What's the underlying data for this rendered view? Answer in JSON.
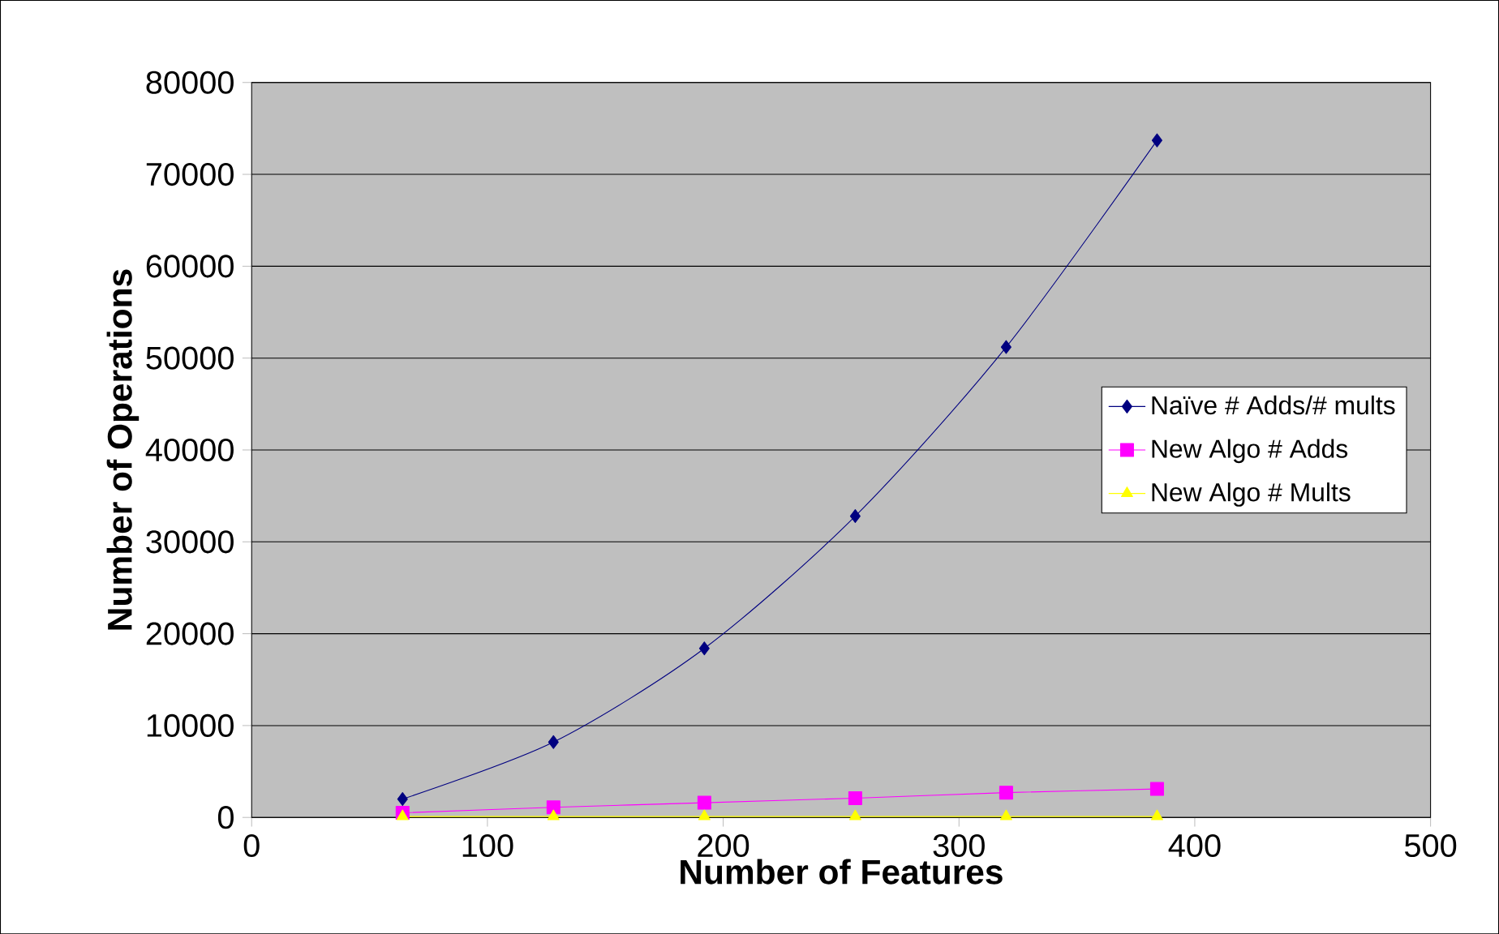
{
  "chart_data": {
    "type": "line",
    "xlabel": "Number of Features",
    "ylabel": "Number of Operations",
    "x": [
      64,
      128,
      192,
      256,
      320,
      384
    ],
    "series": [
      {
        "name": "Naïve # Adds/# mults",
        "color": "#000080",
        "marker": "diamond",
        "values": [
          2000,
          8200,
          18400,
          32800,
          51200,
          73700
        ]
      },
      {
        "name": "New Algo # Adds",
        "color": "#ff00ff",
        "marker": "square",
        "values": [
          500,
          1100,
          1600,
          2100,
          2700,
          3100
        ]
      },
      {
        "name": "New Algo # Mults",
        "color": "#ffff00",
        "marker": "triangle",
        "values": [
          100,
          100,
          100,
          100,
          100,
          100
        ]
      }
    ],
    "xlim": [
      0,
      500
    ],
    "xticks": [
      0,
      100,
      200,
      300,
      400,
      500
    ],
    "ylim": [
      0,
      80000
    ],
    "yticks": [
      0,
      10000,
      20000,
      30000,
      40000,
      50000,
      60000,
      70000,
      80000
    ],
    "grid": "y",
    "legend": "right",
    "line_style": "solid"
  }
}
